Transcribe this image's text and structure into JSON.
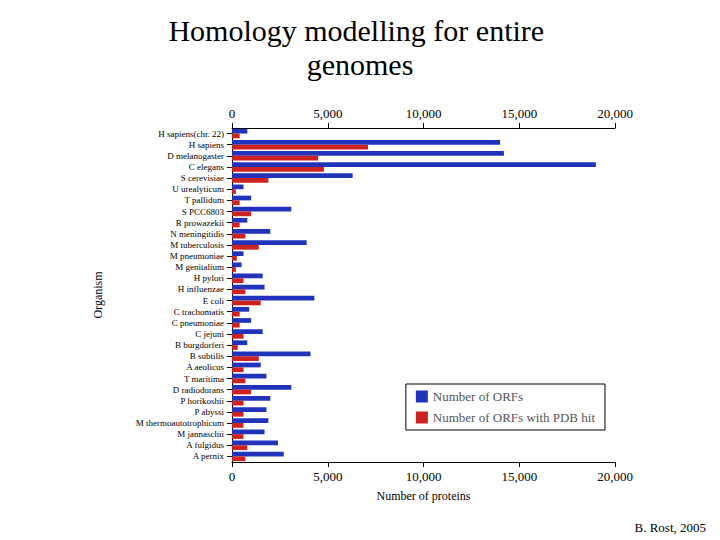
{
  "chart_data": {
    "type": "bar",
    "orientation": "horizontal",
    "title": "Homology modelling for entire genomes",
    "x_label": "Number of proteins",
    "y_label": "Organism",
    "annotation": "B. Rost, 2005",
    "categories": [
      "H sapiens(chr. 22)",
      "H sapiens",
      "D melanogaster",
      "C elegans",
      "S cerevisiae",
      "U urealyticum",
      "T pallidum",
      "S PCC6803",
      "R prowazekii",
      "N meningitidis",
      "M tuberculosis",
      "M pneumoniae",
      "M genitalium",
      "H pylori",
      "H influenzae",
      "E coli",
      "C trachomatis",
      "C pneumoniae",
      "C jejuni",
      "B burgdorferi",
      "B subtilis",
      "A aeolicus",
      "T maritima",
      "D radiodurans",
      "P horikoshii",
      "P abyssi",
      "M thermoautotrophicum",
      "M jannaschii",
      "A fulgidus",
      "A pernix"
    ],
    "series": [
      {
        "name": "Number of ORFs",
        "color": "#2233bb",
        "values": [
          800,
          14000,
          14200,
          19000,
          6300,
          600,
          1000,
          3100,
          800,
          2000,
          3900,
          600,
          500,
          1600,
          1700,
          4300,
          900,
          1000,
          1600,
          800,
          4100,
          1500,
          1800,
          3100,
          2000,
          1800,
          1900,
          1700,
          2400,
          2700
        ]
      },
      {
        "name": "Number of ORFs with PDB hit",
        "color": "#cc2222",
        "values": [
          400,
          7100,
          4500,
          4800,
          1900,
          200,
          400,
          1000,
          400,
          700,
          1400,
          250,
          200,
          600,
          700,
          1500,
          400,
          400,
          600,
          300,
          1400,
          600,
          700,
          1000,
          600,
          600,
          600,
          600,
          800,
          700
        ]
      }
    ],
    "xlim": [
      0,
      20000
    ],
    "xticks": [
      0,
      {
        "value": 5000,
        "label": "5,000"
      },
      {
        "value": 10000,
        "label": "10,000"
      },
      {
        "value": 15000,
        "label": "15,000"
      },
      {
        "value": 20000,
        "label": "20,000"
      }
    ],
    "grid": false,
    "legend": "lower right"
  }
}
